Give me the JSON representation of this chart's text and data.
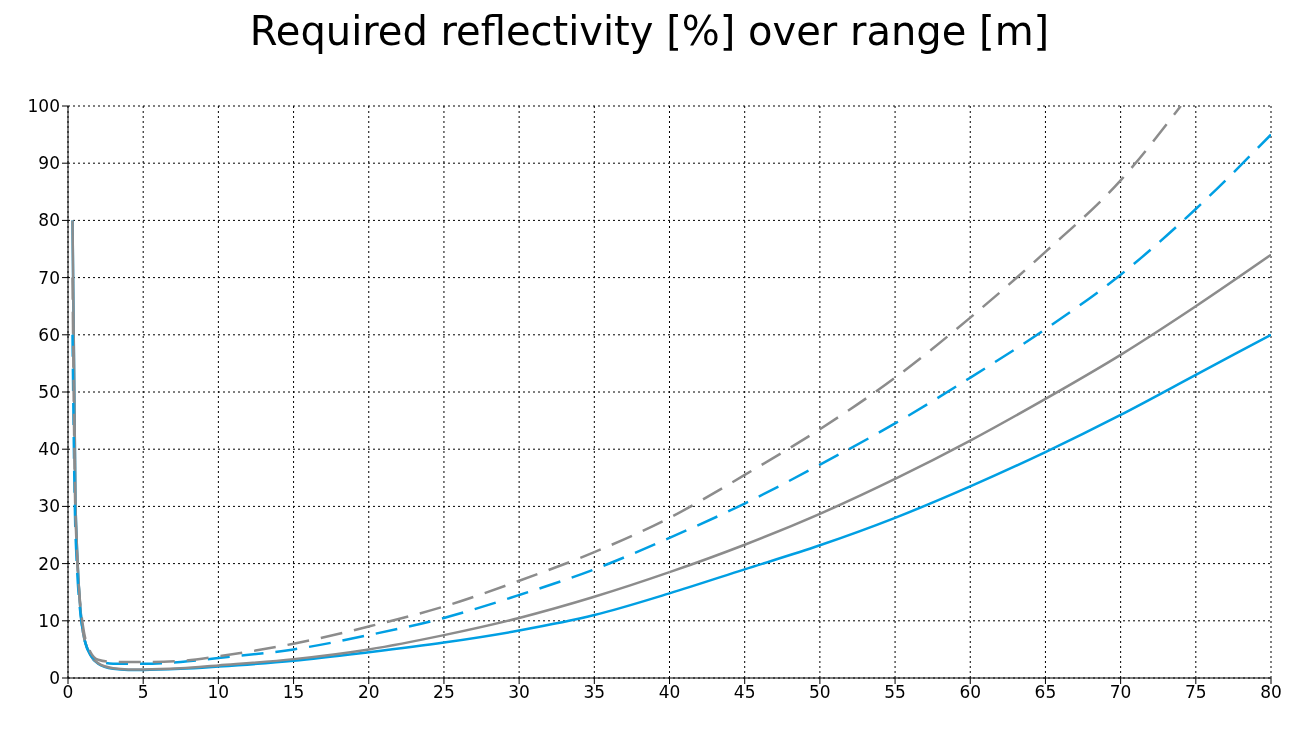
{
  "chart_data": {
    "type": "line",
    "title": "Required reflectivity [%] over range [m]",
    "x": [
      0.3,
      0.5,
      1,
      1.5,
      2,
      3,
      4,
      5,
      7.5,
      10,
      15,
      20,
      25,
      30,
      35,
      40,
      45,
      50,
      55,
      60,
      65,
      70,
      75,
      80
    ],
    "series": [
      {
        "color": "#009fe3",
        "line_style": "solid",
        "values": [
          80,
          30,
          8,
          4,
          2.5,
          1.6,
          1.4,
          1.4,
          1.6,
          2,
          3,
          4.5,
          6.2,
          8.3,
          11,
          14.8,
          19,
          23.2,
          28,
          33.5,
          39.5,
          46,
          53,
          60
        ]
      },
      {
        "color": "#8c8c8c",
        "line_style": "solid",
        "values": [
          80,
          30,
          8,
          4,
          2.6,
          1.7,
          1.5,
          1.5,
          1.7,
          2.2,
          3.3,
          5,
          7.5,
          10.5,
          14.2,
          18.5,
          23.3,
          28.7,
          34.8,
          41.5,
          48.8,
          56.5,
          65,
          74
        ]
      },
      {
        "color": "#009fe3",
        "line_style": "dashed",
        "values": [
          60,
          25,
          8,
          4,
          3,
          2.5,
          2.5,
          2.5,
          2.8,
          3.5,
          5,
          7.5,
          10.5,
          14.5,
          19,
          24.5,
          30.5,
          37.3,
          44.5,
          52.5,
          61,
          70.5,
          82,
          95
        ]
      },
      {
        "color": "#8c8c8c",
        "line_style": "dashed",
        "x": [
          0.3,
          0.5,
          1,
          1.5,
          2,
          3,
          4,
          5,
          7.5,
          10,
          15,
          20,
          25,
          30,
          35,
          40,
          45,
          50,
          55,
          60,
          65,
          70,
          74
        ],
        "values": [
          70,
          28,
          9,
          4.5,
          3.2,
          2.8,
          2.8,
          2.8,
          3,
          3.8,
          6,
          9,
          12.5,
          17,
          22,
          28,
          35.5,
          43.5,
          52.5,
          63,
          74.5,
          87,
          100
        ]
      }
    ],
    "xlim": [
      0,
      80
    ],
    "xticks": [
      0,
      5,
      10,
      15,
      20,
      25,
      30,
      35,
      40,
      45,
      50,
      55,
      60,
      65,
      70,
      75,
      80
    ],
    "ylim": [
      0,
      100
    ],
    "yticks": [
      0,
      10,
      20,
      30,
      40,
      50,
      60,
      70,
      80,
      90,
      100
    ],
    "grid": true,
    "legend": false,
    "marker": "none"
  }
}
